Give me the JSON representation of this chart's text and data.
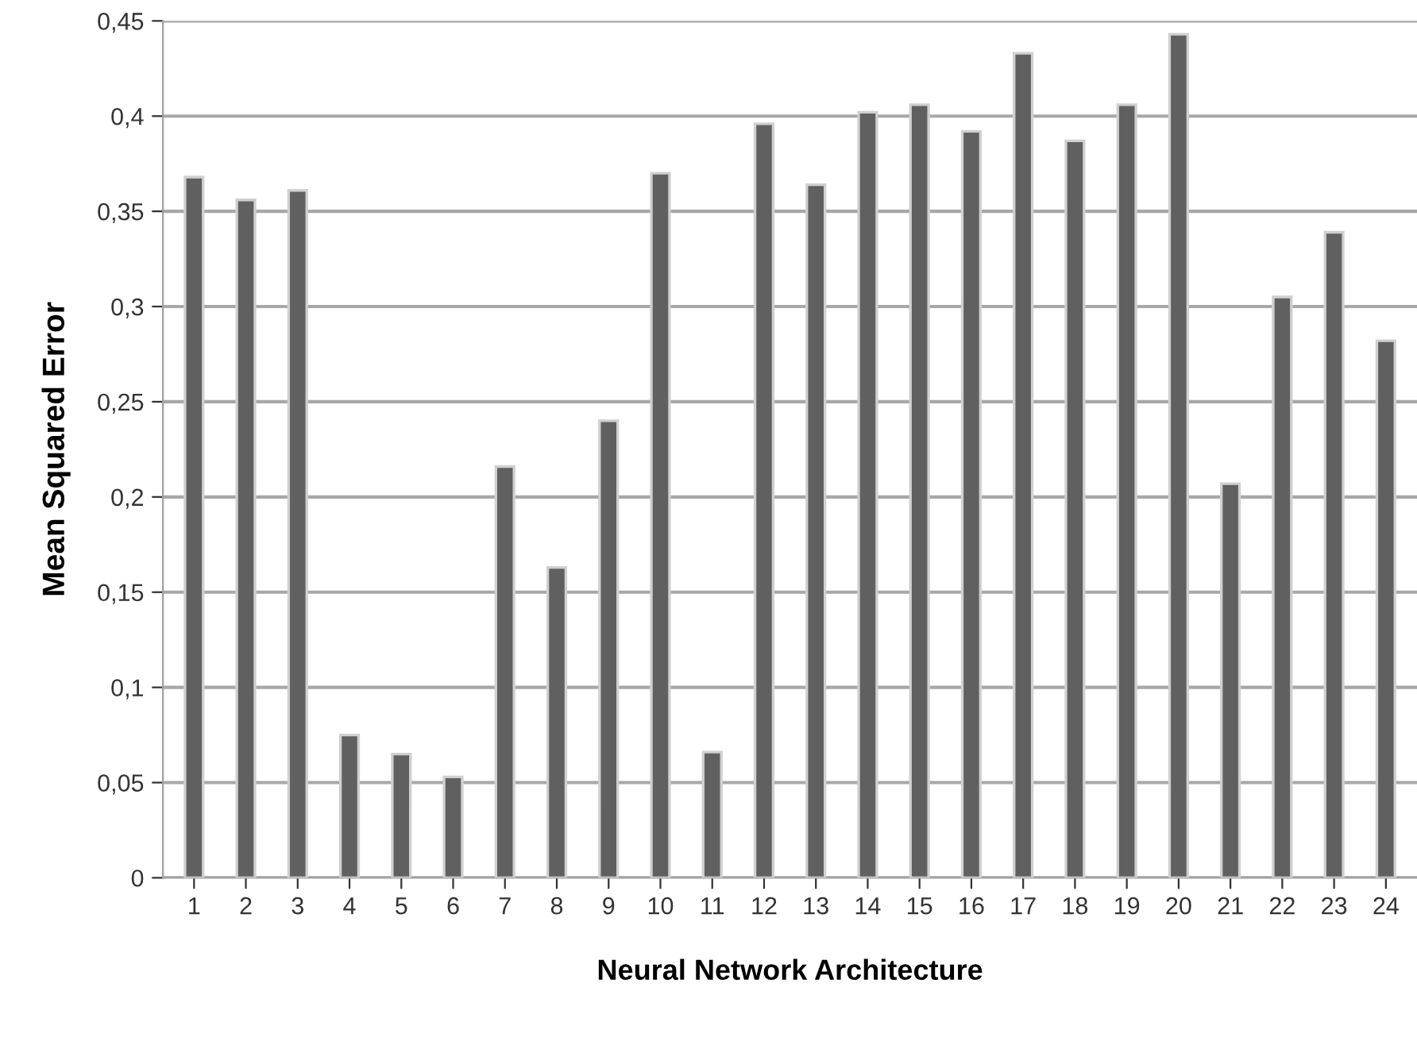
{
  "chart_data": {
    "type": "bar",
    "xlabel": "Neural Network Architecture",
    "ylabel": "Mean Squared Error",
    "categories": [
      "1",
      "2",
      "3",
      "4",
      "5",
      "6",
      "7",
      "8",
      "9",
      "10",
      "11",
      "12",
      "13",
      "14",
      "15",
      "16",
      "17",
      "18",
      "19",
      "20",
      "21",
      "22",
      "23",
      "24"
    ],
    "values": [
      0.368,
      0.356,
      0.361,
      0.075,
      0.065,
      0.053,
      0.216,
      0.163,
      0.24,
      0.37,
      0.066,
      0.396,
      0.364,
      0.402,
      0.406,
      0.392,
      0.433,
      0.387,
      0.406,
      0.443,
      0.207,
      0.305,
      0.339,
      0.282
    ],
    "color": "#606060",
    "ylim": [
      0,
      0.45
    ],
    "yticks": [
      0,
      {
        "value": 0.05,
        "label": "0,05"
      },
      {
        "value": 0.1,
        "label": "0,1"
      },
      {
        "value": 0.15,
        "label": "0,15"
      },
      {
        "value": 0.2,
        "label": "0,2"
      },
      {
        "value": 0.25,
        "label": "0,25"
      },
      {
        "value": 0.3,
        "label": "0,3"
      },
      {
        "value": 0.35,
        "label": "0,35"
      },
      {
        "value": 0.4,
        "label": "0,4"
      },
      {
        "value": 0.45,
        "label": "0,45"
      }
    ],
    "grid": "y",
    "legend": false
  }
}
